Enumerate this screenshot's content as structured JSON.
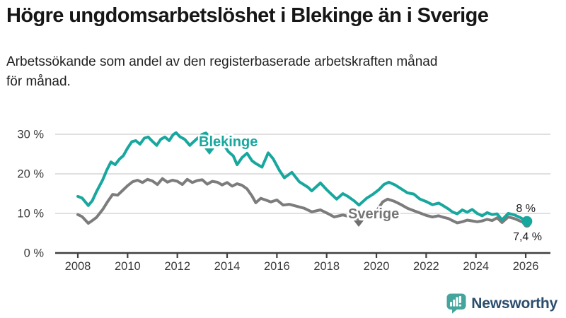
{
  "header": {
    "title": "Högre ungdomsarbetslöshet i Blekinge än i Sverige",
    "subtitle_line1": "Arbetssökande som andel av den registerbaserade arbetskraften månad",
    "subtitle_line2": "för månad."
  },
  "footer": {
    "brand": "Newsworthy"
  },
  "colors": {
    "blekinge": "#18a79e",
    "sverige": "#7c7c7c",
    "grid": "#dcdcdc",
    "axis": "#404040",
    "tick_text": "#3a3a3a",
    "annotation_text": "#1a1a1a",
    "brand_icon": "#44a59d",
    "brand_text": "#2b4d6e"
  },
  "chart_data": {
    "type": "line",
    "title": "Högre ungdomsarbetslöshet i Blekinge än i Sverige",
    "xlabel": "",
    "ylabel": "",
    "xlim": [
      2008,
      2026.3
    ],
    "ylim": [
      0,
      30
    ],
    "grid": "horizontal",
    "legend_position": "inline-labels",
    "y_ticks": [
      {
        "value": 30,
        "label": "30 %"
      },
      {
        "value": 20,
        "label": "20 %"
      },
      {
        "value": 10,
        "label": "10 %"
      },
      {
        "value": 0,
        "label": "0 %"
      }
    ],
    "x_ticks": [
      {
        "value": 2008,
        "label": "2008"
      },
      {
        "value": 2010,
        "label": "2010"
      },
      {
        "value": 2012,
        "label": "2012"
      },
      {
        "value": 2014,
        "label": "2014"
      },
      {
        "value": 2016,
        "label": "2016"
      },
      {
        "value": 2018,
        "label": "2018"
      },
      {
        "value": 2020,
        "label": "2020"
      },
      {
        "value": 2022,
        "label": "2022"
      },
      {
        "value": 2024,
        "label": "2024"
      },
      {
        "value": 2026,
        "label": "2026"
      }
    ],
    "series": [
      {
        "name": "Blekinge",
        "color": "#18a79e",
        "end_label": "8 %",
        "points": [
          [
            2008.0,
            14.3
          ],
          [
            2008.17,
            13.9
          ],
          [
            2008.42,
            12.0
          ],
          [
            2008.58,
            13.2
          ],
          [
            2008.75,
            15.5
          ],
          [
            2009.0,
            18.5
          ],
          [
            2009.17,
            21.0
          ],
          [
            2009.33,
            23.0
          ],
          [
            2009.5,
            22.3
          ],
          [
            2009.67,
            23.7
          ],
          [
            2009.83,
            24.6
          ],
          [
            2010.0,
            26.5
          ],
          [
            2010.17,
            28.1
          ],
          [
            2010.33,
            28.4
          ],
          [
            2010.5,
            27.5
          ],
          [
            2010.67,
            29.0
          ],
          [
            2010.83,
            29.3
          ],
          [
            2011.0,
            28.2
          ],
          [
            2011.17,
            27.2
          ],
          [
            2011.33,
            28.7
          ],
          [
            2011.5,
            29.3
          ],
          [
            2011.67,
            28.4
          ],
          [
            2011.83,
            29.9
          ],
          [
            2011.95,
            30.4
          ],
          [
            2012.1,
            29.4
          ],
          [
            2012.3,
            28.7
          ],
          [
            2012.5,
            27.2
          ],
          [
            2012.67,
            28.2
          ],
          [
            2012.83,
            29.1
          ],
          [
            2013.0,
            30.0
          ],
          [
            2013.15,
            30.3
          ],
          [
            2013.35,
            29.0
          ],
          [
            2013.55,
            28.0
          ],
          [
            2013.75,
            28.6
          ],
          [
            2013.9,
            27.0
          ],
          [
            2014.05,
            25.6
          ],
          [
            2014.25,
            24.5
          ],
          [
            2014.4,
            22.3
          ],
          [
            2014.6,
            24.1
          ],
          [
            2014.8,
            25.2
          ],
          [
            2015.0,
            23.3
          ],
          [
            2015.15,
            22.6
          ],
          [
            2015.4,
            21.7
          ],
          [
            2015.65,
            25.3
          ],
          [
            2015.85,
            23.8
          ],
          [
            2016.1,
            20.9
          ],
          [
            2016.3,
            19.0
          ],
          [
            2016.6,
            20.4
          ],
          [
            2016.9,
            18.0
          ],
          [
            2017.25,
            16.6
          ],
          [
            2017.4,
            15.7
          ],
          [
            2017.75,
            17.7
          ],
          [
            2018.0,
            16.0
          ],
          [
            2018.2,
            14.8
          ],
          [
            2018.4,
            13.6
          ],
          [
            2018.65,
            15.0
          ],
          [
            2018.85,
            14.3
          ],
          [
            2019.1,
            13.2
          ],
          [
            2019.3,
            12.1
          ],
          [
            2019.6,
            13.8
          ],
          [
            2019.85,
            14.8
          ],
          [
            2020.1,
            16.0
          ],
          [
            2020.3,
            17.3
          ],
          [
            2020.5,
            17.9
          ],
          [
            2020.75,
            17.2
          ],
          [
            2021.0,
            16.2
          ],
          [
            2021.25,
            15.2
          ],
          [
            2021.5,
            14.9
          ],
          [
            2021.75,
            13.6
          ],
          [
            2022.0,
            13.0
          ],
          [
            2022.25,
            12.2
          ],
          [
            2022.5,
            12.6
          ],
          [
            2022.7,
            11.9
          ],
          [
            2022.9,
            11.1
          ],
          [
            2023.05,
            10.4
          ],
          [
            2023.25,
            9.9
          ],
          [
            2023.45,
            10.9
          ],
          [
            2023.65,
            10.3
          ],
          [
            2023.85,
            11.0
          ],
          [
            2024.05,
            10.0
          ],
          [
            2024.25,
            9.4
          ],
          [
            2024.45,
            10.2
          ],
          [
            2024.65,
            9.7
          ],
          [
            2024.85,
            9.9
          ],
          [
            2025.05,
            8.4
          ],
          [
            2025.3,
            10.0
          ],
          [
            2025.55,
            9.6
          ],
          [
            2025.8,
            8.9
          ],
          [
            2026.05,
            8.0
          ]
        ]
      },
      {
        "name": "Sverige",
        "color": "#7c7c7c",
        "end_label": "7,4 %",
        "points": [
          [
            2008.0,
            9.7
          ],
          [
            2008.17,
            9.2
          ],
          [
            2008.42,
            7.5
          ],
          [
            2008.58,
            8.2
          ],
          [
            2008.75,
            9.0
          ],
          [
            2009.0,
            11.0
          ],
          [
            2009.2,
            13.0
          ],
          [
            2009.4,
            14.8
          ],
          [
            2009.6,
            14.6
          ],
          [
            2009.8,
            15.8
          ],
          [
            2010.0,
            17.0
          ],
          [
            2010.2,
            18.0
          ],
          [
            2010.4,
            18.4
          ],
          [
            2010.6,
            17.8
          ],
          [
            2010.8,
            18.6
          ],
          [
            2011.0,
            18.2
          ],
          [
            2011.2,
            17.3
          ],
          [
            2011.4,
            18.8
          ],
          [
            2011.6,
            17.9
          ],
          [
            2011.8,
            18.4
          ],
          [
            2012.0,
            18.1
          ],
          [
            2012.2,
            17.3
          ],
          [
            2012.4,
            18.6
          ],
          [
            2012.6,
            17.8
          ],
          [
            2012.8,
            18.3
          ],
          [
            2013.0,
            18.5
          ],
          [
            2013.2,
            17.4
          ],
          [
            2013.4,
            18.1
          ],
          [
            2013.6,
            17.9
          ],
          [
            2013.8,
            17.2
          ],
          [
            2014.0,
            17.8
          ],
          [
            2014.2,
            16.9
          ],
          [
            2014.4,
            17.5
          ],
          [
            2014.6,
            17.1
          ],
          [
            2014.8,
            16.2
          ],
          [
            2015.0,
            14.4
          ],
          [
            2015.15,
            12.7
          ],
          [
            2015.35,
            13.8
          ],
          [
            2015.55,
            13.4
          ],
          [
            2015.75,
            12.9
          ],
          [
            2016.0,
            13.4
          ],
          [
            2016.25,
            12.1
          ],
          [
            2016.5,
            12.3
          ],
          [
            2016.75,
            11.9
          ],
          [
            2017.1,
            11.3
          ],
          [
            2017.4,
            10.4
          ],
          [
            2017.75,
            10.9
          ],
          [
            2018.1,
            9.8
          ],
          [
            2018.3,
            9.1
          ],
          [
            2018.65,
            9.6
          ],
          [
            2018.85,
            9.3
          ],
          [
            2019.1,
            8.9
          ],
          [
            2019.3,
            8.5
          ],
          [
            2019.55,
            9.2
          ],
          [
            2019.8,
            9.9
          ],
          [
            2020.05,
            11.0
          ],
          [
            2020.25,
            12.9
          ],
          [
            2020.45,
            13.6
          ],
          [
            2020.7,
            13.1
          ],
          [
            2021.0,
            12.2
          ],
          [
            2021.25,
            11.3
          ],
          [
            2021.5,
            10.7
          ],
          [
            2021.75,
            10.1
          ],
          [
            2022.0,
            9.5
          ],
          [
            2022.25,
            9.1
          ],
          [
            2022.5,
            9.4
          ],
          [
            2022.7,
            9.0
          ],
          [
            2022.9,
            8.7
          ],
          [
            2023.05,
            8.2
          ],
          [
            2023.25,
            7.6
          ],
          [
            2023.45,
            7.9
          ],
          [
            2023.65,
            8.3
          ],
          [
            2023.85,
            8.1
          ],
          [
            2024.05,
            7.9
          ],
          [
            2024.25,
            8.1
          ],
          [
            2024.45,
            8.5
          ],
          [
            2024.65,
            8.2
          ],
          [
            2024.85,
            8.9
          ],
          [
            2025.05,
            7.7
          ],
          [
            2025.3,
            9.1
          ],
          [
            2025.55,
            8.7
          ],
          [
            2025.8,
            8.0
          ],
          [
            2026.05,
            7.4
          ]
        ]
      }
    ]
  }
}
